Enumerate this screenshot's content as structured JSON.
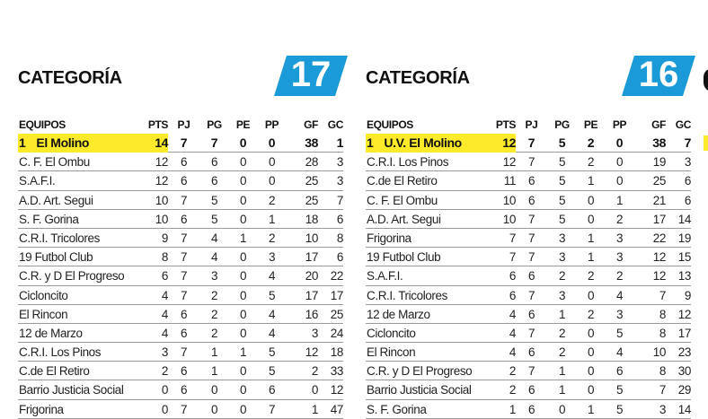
{
  "columns": [
    "EQUIPOS",
    "PTS",
    "PJ",
    "PG",
    "PE",
    "PP",
    "GF",
    "GC"
  ],
  "accent_color": "#1a9ad6",
  "highlight_color": "#fcea2b",
  "panels": [
    {
      "title": "CATEGORÍA",
      "number": "17",
      "leader_rank": "1",
      "rows": [
        [
          "El Molino",
          "14",
          "7",
          "7",
          "0",
          "0",
          "38",
          "1"
        ],
        [
          "C. F. El Ombu",
          "12",
          "6",
          "6",
          "0",
          "0",
          "28",
          "3"
        ],
        [
          "S.A.F.I.",
          "12",
          "6",
          "6",
          "0",
          "0",
          "25",
          "3"
        ],
        [
          "A.D. Art. Segui",
          "10",
          "7",
          "5",
          "0",
          "2",
          "25",
          "7"
        ],
        [
          "S. F. Gorina",
          "10",
          "6",
          "5",
          "0",
          "1",
          "18",
          "6"
        ],
        [
          "C.R.I. Tricolores",
          "9",
          "7",
          "4",
          "1",
          "2",
          "10",
          "8"
        ],
        [
          "19 Futbol Club",
          "8",
          "7",
          "4",
          "0",
          "3",
          "17",
          "6"
        ],
        [
          "C.R. y D El Progreso",
          "6",
          "7",
          "3",
          "0",
          "4",
          "20",
          "22"
        ],
        [
          "Cicloncito",
          "4",
          "7",
          "2",
          "0",
          "5",
          "17",
          "17"
        ],
        [
          "El Rincon",
          "4",
          "6",
          "2",
          "0",
          "4",
          "16",
          "25"
        ],
        [
          "12 de Marzo",
          "4",
          "6",
          "2",
          "0",
          "4",
          "3",
          "24"
        ],
        [
          "C.R.I. Los Pinos",
          "3",
          "7",
          "1",
          "1",
          "5",
          "12",
          "18"
        ],
        [
          "C.de El Retiro",
          "2",
          "6",
          "1",
          "0",
          "5",
          "2",
          "33"
        ],
        [
          "Barrio Justicia Social",
          "0",
          "6",
          "0",
          "0",
          "6",
          "0",
          "12"
        ],
        [
          "Frigorina",
          "0",
          "7",
          "0",
          "0",
          "7",
          "1",
          "47"
        ]
      ]
    },
    {
      "title": "CATEGORÍA",
      "number": "16",
      "leader_rank": "1",
      "rows": [
        [
          "U.V. El Molino",
          "12",
          "7",
          "5",
          "2",
          "0",
          "38",
          "7"
        ],
        [
          "C.R.I. Los Pinos",
          "12",
          "7",
          "5",
          "2",
          "0",
          "19",
          "3"
        ],
        [
          "C.de El Retiro",
          "11",
          "6",
          "5",
          "1",
          "0",
          "25",
          "6"
        ],
        [
          "C. F. El Ombu",
          "10",
          "6",
          "5",
          "0",
          "1",
          "21",
          "6"
        ],
        [
          "A.D. Art. Segui",
          "10",
          "7",
          "5",
          "0",
          "2",
          "17",
          "14"
        ],
        [
          "Frigorina",
          "7",
          "7",
          "3",
          "1",
          "3",
          "22",
          "19"
        ],
        [
          "19 Futbol Club",
          "7",
          "7",
          "3",
          "1",
          "3",
          "12",
          "15"
        ],
        [
          "S.A.F.I.",
          "6",
          "6",
          "2",
          "2",
          "2",
          "12",
          "13"
        ],
        [
          "C.R.I. Tricolores",
          "6",
          "7",
          "3",
          "0",
          "4",
          "7",
          "9"
        ],
        [
          "12 de Marzo",
          "4",
          "6",
          "1",
          "2",
          "3",
          "8",
          "12"
        ],
        [
          "Cicloncito",
          "4",
          "7",
          "2",
          "0",
          "5",
          "8",
          "17"
        ],
        [
          "El Rincon",
          "4",
          "6",
          "2",
          "0",
          "4",
          "10",
          "23"
        ],
        [
          "C.R. y D El Progreso",
          "2",
          "7",
          "1",
          "0",
          "6",
          "8",
          "30"
        ],
        [
          "Barrio Justicia Social",
          "2",
          "6",
          "1",
          "0",
          "5",
          "7",
          "29"
        ],
        [
          "S. F. Gorina",
          "1",
          "6",
          "0",
          "1",
          "5",
          "3",
          "14"
        ]
      ]
    }
  ]
}
